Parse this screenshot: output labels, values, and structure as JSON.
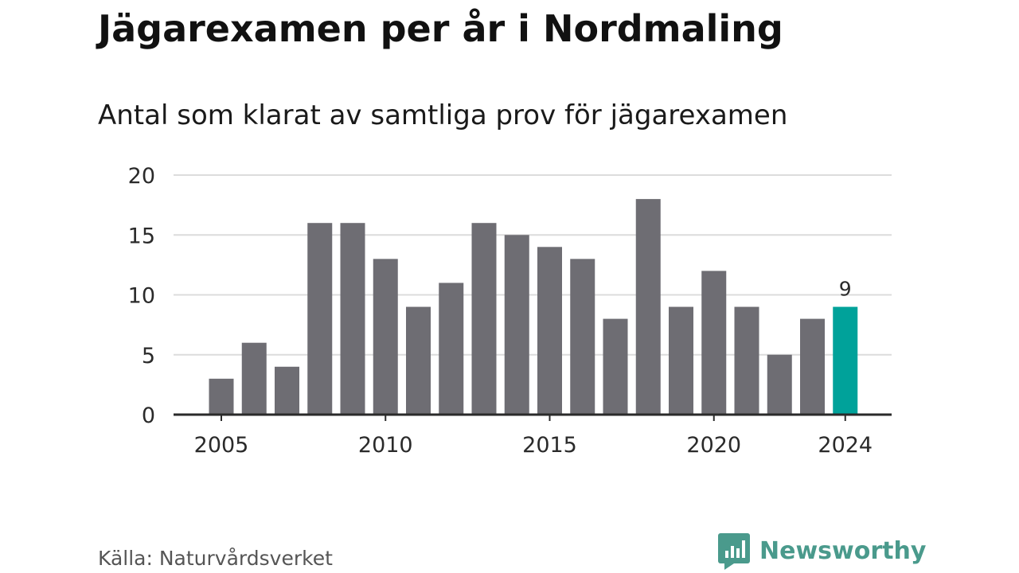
{
  "title": "Jägarexamen per år i Nordmaling",
  "subtitle": "Antal som klarat av samtliga prov för jägarexamen",
  "source": "Källa: Naturvårdsverket",
  "brand": {
    "name": "Newsworthy",
    "icon": "newsworthy-logo-icon"
  },
  "colors": {
    "bar": "#6e6d73",
    "highlight": "#00a29a",
    "grid": "#dcdcdc",
    "axis": "#2a2a2a",
    "text": "#2a2a2a"
  },
  "chart_data": {
    "type": "bar",
    "x": [
      2005,
      2006,
      2007,
      2008,
      2009,
      2010,
      2011,
      2012,
      2013,
      2014,
      2015,
      2016,
      2017,
      2018,
      2019,
      2020,
      2021,
      2022,
      2023,
      2024
    ],
    "values": [
      3,
      6,
      4,
      16,
      16,
      13,
      9,
      11,
      16,
      15,
      14,
      13,
      8,
      18,
      9,
      12,
      9,
      5,
      8,
      9
    ],
    "ylim": [
      0,
      20
    ],
    "yticks": [
      0,
      5,
      10,
      15,
      20
    ],
    "xticks": [
      2005,
      2010,
      2015,
      2020,
      2024
    ],
    "highlight": {
      "x": 2024,
      "label": "9"
    },
    "grid": true
  }
}
